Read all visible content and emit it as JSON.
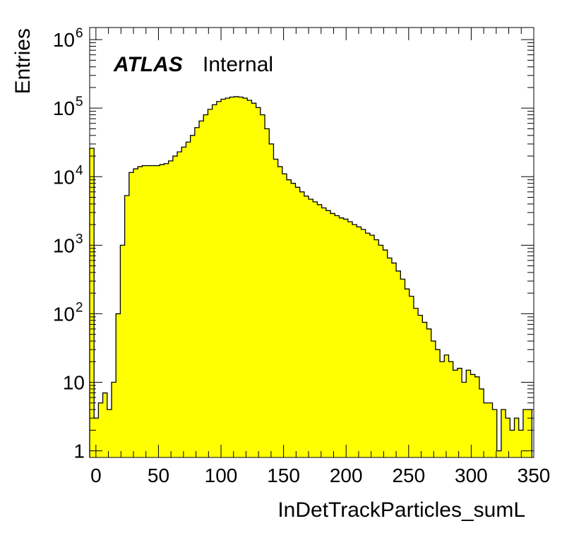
{
  "chart_data": {
    "type": "bar",
    "style": "step-filled-histogram",
    "fill_color": "#ffff00",
    "line_color": "#000000",
    "ylabel": "Entries",
    "xlabel": "InDetTrackParticles_sumL",
    "label": {
      "experiment": "ATLAS",
      "status": "Internal"
    },
    "y_scale": "log",
    "xlim": [
      -5,
      350
    ],
    "ylim": [
      0.8,
      1500000
    ],
    "grid": false,
    "x_ticks": [
      0,
      50,
      100,
      150,
      200,
      250,
      300,
      350
    ],
    "x_tick_labels": [
      "0",
      "50",
      "100",
      "150",
      "200",
      "250",
      "300",
      "350"
    ],
    "y_ticks": [
      1,
      10,
      100,
      1000,
      10000,
      100000,
      1000000
    ],
    "y_tick_labels": [
      {
        "base": "1",
        "exp": ""
      },
      {
        "base": "10",
        "exp": ""
      },
      {
        "base": "10",
        "exp": "2"
      },
      {
        "base": "10",
        "exp": "3"
      },
      {
        "base": "10",
        "exp": "4"
      },
      {
        "base": "10",
        "exp": "5"
      },
      {
        "base": "10",
        "exp": "6"
      }
    ],
    "bin_width": 3.5,
    "x": [
      -3.25,
      0.25,
      3.75,
      7.25,
      10.75,
      14.25,
      17.75,
      21.25,
      24.75,
      28.25,
      31.75,
      35.25,
      38.75,
      42.25,
      45.75,
      49.25,
      52.75,
      56.25,
      59.75,
      63.25,
      66.75,
      70.25,
      73.75,
      77.25,
      80.75,
      84.25,
      87.75,
      91.25,
      94.75,
      98.25,
      101.75,
      105.25,
      108.75,
      112.25,
      115.75,
      119.25,
      122.75,
      126.25,
      129.75,
      133.25,
      136.75,
      140.25,
      143.75,
      147.25,
      150.75,
      154.25,
      157.75,
      161.25,
      164.75,
      168.25,
      171.75,
      175.25,
      178.75,
      182.25,
      185.75,
      189.25,
      192.75,
      196.25,
      199.75,
      203.25,
      206.75,
      210.25,
      213.75,
      217.25,
      220.75,
      224.25,
      227.75,
      231.25,
      234.75,
      238.25,
      241.75,
      245.25,
      248.75,
      252.25,
      255.75,
      259.25,
      262.75,
      266.25,
      269.75,
      273.25,
      276.75,
      280.25,
      283.75,
      287.25,
      290.75,
      294.25,
      297.75,
      301.25,
      304.75,
      308.25,
      311.75,
      315.25,
      318.75,
      322.25,
      325.75,
      329.25,
      332.75,
      336.25,
      339.75,
      343.25,
      346.75
    ],
    "values": [
      26000,
      3,
      5,
      7,
      4,
      10,
      100,
      1000,
      5300,
      11500,
      13000,
      14000,
      14500,
      14500,
      14500,
      14500,
      15000,
      15500,
      17000,
      20000,
      23000,
      27000,
      32000,
      40000,
      52000,
      65000,
      80000,
      96000,
      112000,
      125000,
      135000,
      140000,
      145000,
      147000,
      145000,
      140000,
      130000,
      118000,
      102000,
      80000,
      50000,
      30000,
      18000,
      14000,
      11000,
      9000,
      8000,
      7000,
      6000,
      5200,
      4700,
      4300,
      3900,
      3500,
      3200,
      2900,
      2700,
      2500,
      2400,
      2200,
      2000,
      1850,
      1700,
      1500,
      1400,
      1200,
      1000,
      850,
      650,
      550,
      420,
      320,
      230,
      180,
      120,
      95,
      75,
      60,
      40,
      30,
      20,
      25,
      20,
      15,
      16,
      10,
      15,
      13,
      12,
      8,
      5,
      5,
      4,
      1,
      4,
      3,
      2,
      3,
      2,
      4,
      4
    ]
  }
}
